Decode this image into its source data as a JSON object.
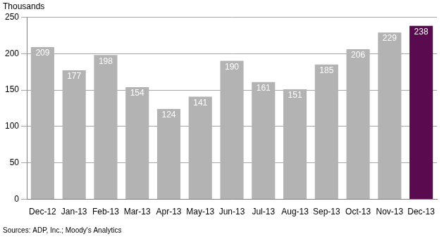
{
  "chart_data": {
    "type": "bar",
    "ylabel": "Thousands",
    "source": "Sources: ADP, Inc.; Moody's Analytics",
    "categories": [
      "Dec-12",
      "Jan-13",
      "Feb-13",
      "Mar-13",
      "Apr-13",
      "May-13",
      "Jun-13",
      "Jul-13",
      "Aug-13",
      "Sep-13",
      "Oct-13",
      "Nov-13",
      "Dec-13"
    ],
    "values": [
      209,
      177,
      198,
      154,
      124,
      141,
      190,
      161,
      151,
      185,
      206,
      229,
      238
    ],
    "colors": [
      "#b3b3b3",
      "#b3b3b3",
      "#b3b3b3",
      "#b3b3b3",
      "#b3b3b3",
      "#b3b3b3",
      "#b3b3b3",
      "#b3b3b3",
      "#b3b3b3",
      "#b3b3b3",
      "#b3b3b3",
      "#b3b3b3",
      "#5a0a4e"
    ],
    "ylim": [
      0,
      250
    ],
    "yticks": [
      0,
      50,
      100,
      150,
      200,
      250
    ],
    "grid": true,
    "data_labels": true
  }
}
